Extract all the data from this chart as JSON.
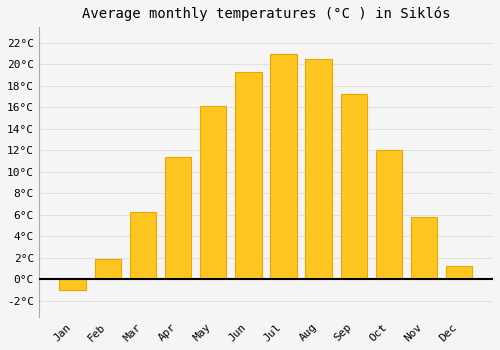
{
  "title": "Average monthly temperatures (°C ) in Siklós",
  "months": [
    "Jan",
    "Feb",
    "Mar",
    "Apr",
    "May",
    "Jun",
    "Jul",
    "Aug",
    "Sep",
    "Oct",
    "Nov",
    "Dec"
  ],
  "values": [
    -1.0,
    1.9,
    6.3,
    11.4,
    16.1,
    19.3,
    21.0,
    20.5,
    17.2,
    12.0,
    5.8,
    1.2
  ],
  "bar_color": "#FFC520",
  "bar_edge_color": "#E8A800",
  "background_color": "#F5F5F5",
  "grid_color": "#DDDDDD",
  "ylim": [
    -3.5,
    23.5
  ],
  "yticks": [
    -2,
    0,
    2,
    4,
    6,
    8,
    10,
    12,
    14,
    16,
    18,
    20,
    22
  ],
  "ytick_labels": [
    "-2°C",
    "0°C",
    "2°C",
    "4°C",
    "6°C",
    "8°C",
    "10°C",
    "12°C",
    "14°C",
    "16°C",
    "18°C",
    "20°C",
    "22°C"
  ],
  "title_fontsize": 10,
  "tick_fontsize": 8,
  "figsize": [
    5.0,
    3.5
  ],
  "dpi": 100
}
